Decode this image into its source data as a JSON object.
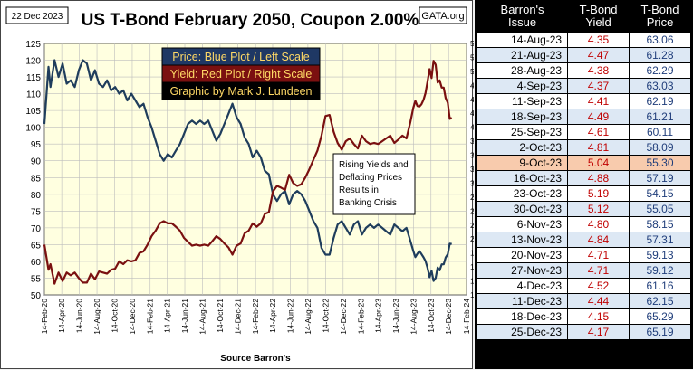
{
  "header": {
    "date": "22 Dec 2023",
    "title": "US T-Bond February 2050, Coupon 2.00%",
    "source_logo": "GATA.org"
  },
  "legend": {
    "price": "Price:  Blue Plot / Left Scale",
    "yield": "Yield:  Red Plot / Right Scale",
    "credit": "Graphic by Mark J. Lundeen"
  },
  "annotation": [
    "Rising Yields and",
    "Deflating Prices",
    "Results in",
    "Banking Crisis"
  ],
  "footer": {
    "source": "Source Barron's"
  },
  "colors": {
    "price_line": "#1f3d5c",
    "yield_line": "#7a1010",
    "legend_price_bg": "#1f3864",
    "legend_price_text": "#ffd966",
    "legend_yield_bg": "#7b1010",
    "legend_yield_text": "#ffd966",
    "legend_credit_bg": "#000000",
    "legend_credit_text": "#ffd966",
    "plot_bg": "#ffffe0",
    "highlight_row": "#f8cbad"
  },
  "chart_data": {
    "type": "line",
    "title": "US T-Bond February 2050, Coupon 2.00%",
    "xlabel": "Source Barron's",
    "ylabel": "",
    "x_ticks": [
      "14-Feb-20",
      "14-Apr-20",
      "14-Jun-20",
      "14-Aug-20",
      "14-Oct-20",
      "14-Dec-20",
      "14-Feb-21",
      "14-Apr-21",
      "14-Jun-21",
      "14-Aug-21",
      "14-Oct-21",
      "14-Dec-21",
      "14-Feb-22",
      "14-Apr-22",
      "14-Jun-22",
      "14-Aug-22",
      "14-Oct-22",
      "14-Dec-22",
      "14-Feb-23",
      "14-Apr-23",
      "14-Jun-23",
      "14-Aug-23",
      "14-Oct-23",
      "14-Dec-23",
      "14-Feb-24"
    ],
    "xlim": [
      "14-Feb-20",
      "14-Feb-24"
    ],
    "ylim_left": [
      50,
      125
    ],
    "ylim_right": [
      1.0,
      5.5
    ],
    "left_ticks": [
      50,
      55,
      60,
      65,
      70,
      75,
      80,
      85,
      90,
      95,
      100,
      105,
      110,
      115,
      120,
      125
    ],
    "right_ticks": [
      "1.00",
      "1.25",
      "1.50",
      "1.75",
      "2.00",
      "2.25",
      "2.50",
      "2.75",
      "3.00",
      "3.25",
      "3.50",
      "3.75",
      "4.00",
      "4.25",
      "4.50",
      "4.75",
      "5.00",
      "5.25",
      "5.50"
    ],
    "grid": true,
    "series": [
      {
        "name": "Price",
        "axis": "left",
        "points": [
          [
            "2020-02-14",
            101
          ],
          [
            "2020-02-28",
            118
          ],
          [
            "2020-03-06",
            112
          ],
          [
            "2020-03-20",
            120
          ],
          [
            "2020-04-03",
            115
          ],
          [
            "2020-04-17",
            119
          ],
          [
            "2020-05-01",
            113
          ],
          [
            "2020-05-15",
            114
          ],
          [
            "2020-05-29",
            112
          ],
          [
            "2020-06-12",
            117
          ],
          [
            "2020-06-26",
            120
          ],
          [
            "2020-07-10",
            119
          ],
          [
            "2020-07-24",
            114
          ],
          [
            "2020-08-07",
            117
          ],
          [
            "2020-08-21",
            113
          ],
          [
            "2020-09-04",
            112
          ],
          [
            "2020-09-18",
            114
          ],
          [
            "2020-10-02",
            111
          ],
          [
            "2020-10-16",
            112
          ],
          [
            "2020-10-30",
            110
          ],
          [
            "2020-11-13",
            111
          ],
          [
            "2020-11-27",
            108
          ],
          [
            "2020-12-11",
            110
          ],
          [
            "2020-12-25",
            108
          ],
          [
            "2021-01-08",
            106
          ],
          [
            "2021-01-22",
            107
          ],
          [
            "2021-02-05",
            103
          ],
          [
            "2021-02-19",
            100
          ],
          [
            "2021-03-05",
            96
          ],
          [
            "2021-03-19",
            92
          ],
          [
            "2021-04-02",
            90
          ],
          [
            "2021-04-16",
            92
          ],
          [
            "2021-04-30",
            91
          ],
          [
            "2021-05-14",
            93
          ],
          [
            "2021-05-28",
            95
          ],
          [
            "2021-06-11",
            98
          ],
          [
            "2021-06-25",
            101
          ],
          [
            "2021-07-09",
            102
          ],
          [
            "2021-07-23",
            101
          ],
          [
            "2021-08-06",
            102
          ],
          [
            "2021-08-20",
            101
          ],
          [
            "2021-09-03",
            102
          ],
          [
            "2021-09-17",
            99
          ],
          [
            "2021-10-01",
            96
          ],
          [
            "2021-10-15",
            98
          ],
          [
            "2021-10-29",
            101
          ],
          [
            "2021-11-12",
            104
          ],
          [
            "2021-11-26",
            107
          ],
          [
            "2021-12-10",
            103
          ],
          [
            "2021-12-24",
            101
          ],
          [
            "2022-01-07",
            97
          ],
          [
            "2022-01-21",
            95
          ],
          [
            "2022-02-04",
            91
          ],
          [
            "2022-02-18",
            93
          ],
          [
            "2022-03-04",
            91
          ],
          [
            "2022-03-18",
            87
          ],
          [
            "2022-04-01",
            86
          ],
          [
            "2022-04-15",
            80
          ],
          [
            "2022-04-29",
            78
          ],
          [
            "2022-05-13",
            80
          ],
          [
            "2022-05-27",
            81
          ],
          [
            "2022-06-10",
            77
          ],
          [
            "2022-06-24",
            80
          ],
          [
            "2022-07-08",
            81
          ],
          [
            "2022-07-22",
            80
          ],
          [
            "2022-08-05",
            78
          ],
          [
            "2022-08-19",
            75
          ],
          [
            "2022-09-02",
            72
          ],
          [
            "2022-09-16",
            70
          ],
          [
            "2022-09-30",
            64
          ],
          [
            "2022-10-14",
            62
          ],
          [
            "2022-10-28",
            62
          ],
          [
            "2022-11-11",
            67
          ],
          [
            "2022-11-25",
            71
          ],
          [
            "2022-12-09",
            72
          ],
          [
            "2022-12-23",
            70
          ],
          [
            "2023-01-06",
            68
          ],
          [
            "2023-01-20",
            71
          ],
          [
            "2023-02-03",
            72
          ],
          [
            "2023-02-17",
            68
          ],
          [
            "2023-03-03",
            70
          ],
          [
            "2023-03-17",
            71
          ],
          [
            "2023-03-31",
            70
          ],
          [
            "2023-04-14",
            71
          ],
          [
            "2023-04-28",
            70
          ],
          [
            "2023-05-12",
            69
          ],
          [
            "2023-05-26",
            68
          ],
          [
            "2023-06-09",
            71
          ],
          [
            "2023-06-23",
            70
          ],
          [
            "2023-07-07",
            69
          ],
          [
            "2023-07-21",
            70
          ],
          [
            "2023-08-04",
            66
          ],
          [
            "2023-08-14",
            63.06
          ],
          [
            "2023-08-21",
            61.28
          ],
          [
            "2023-08-28",
            62.29
          ],
          [
            "2023-09-04",
            63.03
          ],
          [
            "2023-09-11",
            62.19
          ],
          [
            "2023-09-18",
            61.21
          ],
          [
            "2023-09-25",
            60.11
          ],
          [
            "2023-10-02",
            58.09
          ],
          [
            "2023-10-09",
            55.3
          ],
          [
            "2023-10-16",
            57.19
          ],
          [
            "2023-10-23",
            54.15
          ],
          [
            "2023-10-30",
            55.05
          ],
          [
            "2023-11-06",
            58.15
          ],
          [
            "2023-11-13",
            57.31
          ],
          [
            "2023-11-20",
            59.13
          ],
          [
            "2023-11-27",
            59.12
          ],
          [
            "2023-12-04",
            61.16
          ],
          [
            "2023-12-11",
            62.15
          ],
          [
            "2023-12-18",
            65.29
          ],
          [
            "2023-12-25",
            65.19
          ]
        ]
      },
      {
        "name": "Yield",
        "axis": "right",
        "points": [
          [
            "2020-02-14",
            1.9
          ],
          [
            "2020-02-28",
            1.45
          ],
          [
            "2020-03-06",
            1.55
          ],
          [
            "2020-03-20",
            1.2
          ],
          [
            "2020-04-03",
            1.4
          ],
          [
            "2020-04-17",
            1.25
          ],
          [
            "2020-05-01",
            1.4
          ],
          [
            "2020-05-15",
            1.35
          ],
          [
            "2020-05-29",
            1.4
          ],
          [
            "2020-06-12",
            1.3
          ],
          [
            "2020-06-26",
            1.22
          ],
          [
            "2020-07-10",
            1.22
          ],
          [
            "2020-07-24",
            1.38
          ],
          [
            "2020-08-07",
            1.28
          ],
          [
            "2020-08-21",
            1.42
          ],
          [
            "2020-09-04",
            1.4
          ],
          [
            "2020-09-18",
            1.38
          ],
          [
            "2020-10-02",
            1.45
          ],
          [
            "2020-10-16",
            1.47
          ],
          [
            "2020-10-30",
            1.6
          ],
          [
            "2020-11-13",
            1.55
          ],
          [
            "2020-11-27",
            1.62
          ],
          [
            "2020-12-11",
            1.6
          ],
          [
            "2020-12-25",
            1.62
          ],
          [
            "2021-01-08",
            1.75
          ],
          [
            "2021-01-22",
            1.78
          ],
          [
            "2021-02-05",
            1.9
          ],
          [
            "2021-02-19",
            2.05
          ],
          [
            "2021-03-05",
            2.15
          ],
          [
            "2021-03-19",
            2.28
          ],
          [
            "2021-04-02",
            2.32
          ],
          [
            "2021-04-16",
            2.28
          ],
          [
            "2021-04-30",
            2.28
          ],
          [
            "2021-05-14",
            2.22
          ],
          [
            "2021-05-28",
            2.15
          ],
          [
            "2021-06-11",
            2.02
          ],
          [
            "2021-06-25",
            1.95
          ],
          [
            "2021-07-09",
            1.88
          ],
          [
            "2021-07-23",
            1.9
          ],
          [
            "2021-08-06",
            1.88
          ],
          [
            "2021-08-20",
            1.9
          ],
          [
            "2021-09-03",
            1.88
          ],
          [
            "2021-09-17",
            1.96
          ],
          [
            "2021-10-01",
            2.05
          ],
          [
            "2021-10-15",
            2.0
          ],
          [
            "2021-10-29",
            1.92
          ],
          [
            "2021-11-12",
            1.85
          ],
          [
            "2021-11-26",
            1.72
          ],
          [
            "2021-12-10",
            1.88
          ],
          [
            "2021-12-24",
            1.92
          ],
          [
            "2022-01-07",
            2.1
          ],
          [
            "2022-01-21",
            2.15
          ],
          [
            "2022-02-04",
            2.28
          ],
          [
            "2022-02-18",
            2.22
          ],
          [
            "2022-03-04",
            2.28
          ],
          [
            "2022-03-18",
            2.45
          ],
          [
            "2022-04-01",
            2.48
          ],
          [
            "2022-04-15",
            2.85
          ],
          [
            "2022-04-29",
            2.95
          ],
          [
            "2022-05-13",
            2.92
          ],
          [
            "2022-05-27",
            2.88
          ],
          [
            "2022-06-10",
            3.15
          ],
          [
            "2022-06-24",
            3.0
          ],
          [
            "2022-07-08",
            2.95
          ],
          [
            "2022-07-22",
            2.98
          ],
          [
            "2022-08-05",
            3.1
          ],
          [
            "2022-08-19",
            3.25
          ],
          [
            "2022-09-02",
            3.42
          ],
          [
            "2022-09-16",
            3.58
          ],
          [
            "2022-09-30",
            3.85
          ],
          [
            "2022-10-14",
            4.2
          ],
          [
            "2022-10-28",
            4.22
          ],
          [
            "2022-11-11",
            3.92
          ],
          [
            "2022-11-25",
            3.72
          ],
          [
            "2022-12-09",
            3.6
          ],
          [
            "2022-12-23",
            3.75
          ],
          [
            "2023-01-06",
            3.8
          ],
          [
            "2023-01-20",
            3.7
          ],
          [
            "2023-02-03",
            3.62
          ],
          [
            "2023-02-17",
            3.85
          ],
          [
            "2023-03-03",
            3.75
          ],
          [
            "2023-03-17",
            3.7
          ],
          [
            "2023-03-31",
            3.72
          ],
          [
            "2023-04-14",
            3.7
          ],
          [
            "2023-04-28",
            3.75
          ],
          [
            "2023-05-12",
            3.8
          ],
          [
            "2023-05-26",
            3.85
          ],
          [
            "2023-06-09",
            3.72
          ],
          [
            "2023-06-23",
            3.78
          ],
          [
            "2023-07-07",
            3.85
          ],
          [
            "2023-07-21",
            3.8
          ],
          [
            "2023-08-04",
            4.1
          ],
          [
            "2023-08-14",
            4.35
          ],
          [
            "2023-08-21",
            4.47
          ],
          [
            "2023-08-28",
            4.38
          ],
          [
            "2023-09-04",
            4.37
          ],
          [
            "2023-09-11",
            4.41
          ],
          [
            "2023-09-18",
            4.49
          ],
          [
            "2023-09-25",
            4.61
          ],
          [
            "2023-10-02",
            4.81
          ],
          [
            "2023-10-09",
            5.04
          ],
          [
            "2023-10-16",
            4.88
          ],
          [
            "2023-10-23",
            5.19
          ],
          [
            "2023-10-30",
            5.12
          ],
          [
            "2023-11-06",
            4.8
          ],
          [
            "2023-11-13",
            4.84
          ],
          [
            "2023-11-20",
            4.71
          ],
          [
            "2023-11-27",
            4.71
          ],
          [
            "2023-12-04",
            4.52
          ],
          [
            "2023-12-11",
            4.44
          ],
          [
            "2023-12-18",
            4.15
          ],
          [
            "2023-12-25",
            4.17
          ]
        ]
      }
    ]
  },
  "table": {
    "headers": [
      [
        "Barron's",
        "Issue"
      ],
      [
        "T-Bond",
        "Yield"
      ],
      [
        "T-Bond",
        "Price"
      ]
    ],
    "rows": [
      [
        "14-Aug-23",
        "4.35",
        "63.06"
      ],
      [
        "21-Aug-23",
        "4.47",
        "61.28"
      ],
      [
        "28-Aug-23",
        "4.38",
        "62.29"
      ],
      [
        "4-Sep-23",
        "4.37",
        "63.03"
      ],
      [
        "11-Sep-23",
        "4.41",
        "62.19"
      ],
      [
        "18-Sep-23",
        "4.49",
        "61.21"
      ],
      [
        "25-Sep-23",
        "4.61",
        "60.11"
      ],
      [
        "2-Oct-23",
        "4.81",
        "58.09"
      ],
      [
        "9-Oct-23",
        "5.04",
        "55.30"
      ],
      [
        "16-Oct-23",
        "4.88",
        "57.19"
      ],
      [
        "23-Oct-23",
        "5.19",
        "54.15"
      ],
      [
        "30-Oct-23",
        "5.12",
        "55.05"
      ],
      [
        "6-Nov-23",
        "4.80",
        "58.15"
      ],
      [
        "13-Nov-23",
        "4.84",
        "57.31"
      ],
      [
        "20-Nov-23",
        "4.71",
        "59.13"
      ],
      [
        "27-Nov-23",
        "4.71",
        "59.12"
      ],
      [
        "4-Dec-23",
        "4.52",
        "61.16"
      ],
      [
        "11-Dec-23",
        "4.44",
        "62.15"
      ],
      [
        "18-Dec-23",
        "4.15",
        "65.29"
      ],
      [
        "25-Dec-23",
        "4.17",
        "65.19"
      ]
    ],
    "highlight_row_date": "9-Oct-23"
  }
}
